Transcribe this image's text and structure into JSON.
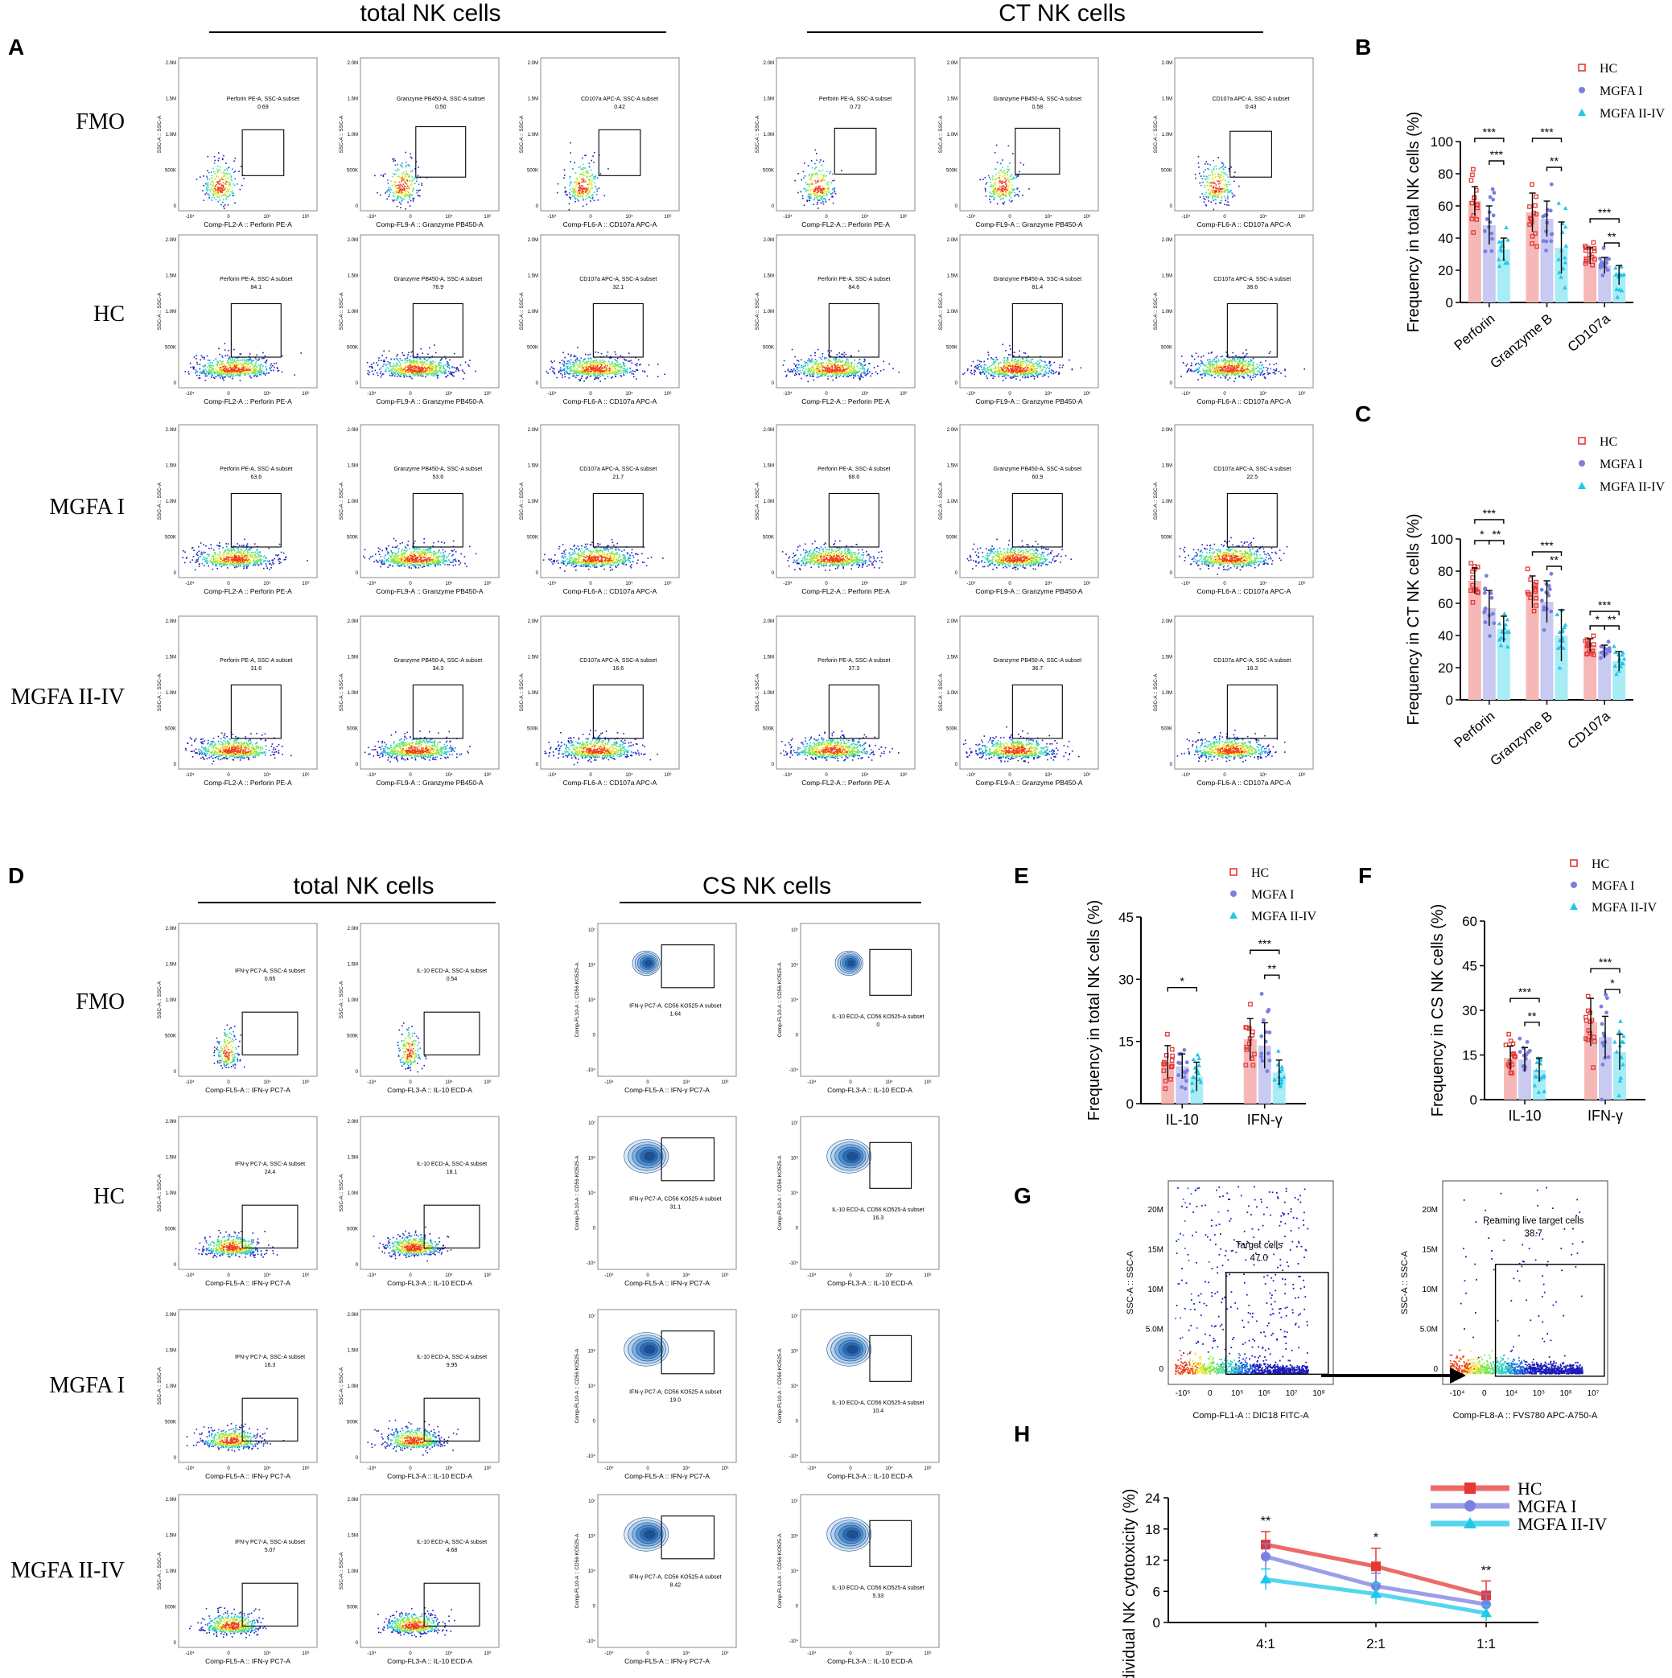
{
  "headers": {
    "top_left": "total NK cells",
    "top_right": "CT NK cells",
    "bottom_left": "total NK cells",
    "bottom_right": "CS NK cells"
  },
  "panel_letters": [
    "A",
    "B",
    "C",
    "D",
    "E",
    "F",
    "G",
    "H"
  ],
  "row_labels": [
    "FMO",
    "HC",
    "MGFA I",
    "MGFA II-IV"
  ],
  "flow_common": {
    "y_label": "SSC-A :: SSC-A",
    "y_ticks": [
      "2.0M",
      "1.5M",
      "1.0M",
      "500K",
      "0"
    ],
    "x_ticks": [
      "-10⁴",
      "0",
      "10⁴",
      "10⁶"
    ],
    "cs_y_label": "Comp-FL10-A :: CD56 KO525-A",
    "cs_y_ticks": [
      "10⁷",
      "10⁶",
      "10⁴",
      "0",
      "-10⁴"
    ]
  },
  "panel_A": {
    "columns": [
      {
        "marker": "Perforin PE-A, SSC-A subset",
        "xlabel": "Comp-FL2-A :: Perforin PE-A",
        "values": [
          "0.69",
          "84.1",
          "63.6",
          "31.6"
        ]
      },
      {
        "marker": "Granzyme PB450-A, SSC-A subset",
        "xlabel": "Comp-FL9-A :: Granzyme PB450-A",
        "values": [
          "0.50",
          "76.9",
          "53.6",
          "34.3"
        ]
      },
      {
        "marker": "CD107a APC-A, SSC-A subset",
        "xlabel": "Comp-FL6-A :: CD107a APC-A",
        "values": [
          "0.42",
          "32.1",
          "21.7",
          "16.6"
        ]
      },
      {
        "marker": "Perforin PE-A, SSC-A subset",
        "xlabel": "Comp-FL2-A :: Perforin PE-A",
        "values": [
          "0.72",
          "84.6",
          "68.6",
          "37.3"
        ]
      },
      {
        "marker": "Granzyme PB450-A, SSC-A subset",
        "xlabel": "Comp-FL9-A :: Granzyme PB450-A",
        "values": [
          "0.58",
          "81.4",
          "60.9",
          "36.7"
        ]
      },
      {
        "marker": "CD107a APC-A, SSC-A subset",
        "xlabel": "Comp-FL6-A :: CD107a APC-A",
        "values": [
          "0.43",
          "38.6",
          "22.5",
          "18.3"
        ]
      }
    ]
  },
  "panel_D": {
    "columns": [
      {
        "marker": "IFN-γ PC7-A, SSC-A subset",
        "xlabel": "Comp-FL5-A :: IFN-γ PC7-A",
        "values": [
          "0.65",
          "24.4",
          "16.3",
          "5.07"
        ]
      },
      {
        "marker": "IL-10 ECD-A, SSC-A subset",
        "xlabel": "Comp-FL3-A :: IL-10 ECD-A",
        "values": [
          "0.54",
          "18.1",
          "9.95",
          "4.68"
        ]
      },
      {
        "marker": "IFN-γ PC7-A, CD56 KO525-A subset",
        "xlabel": "Comp-FL5-A :: IFN-γ PC7-A",
        "values": [
          "1.64",
          "31.1",
          "19.0",
          "8.42"
        ]
      },
      {
        "marker": "IL-10 ECD-A, CD56 KO525-A subset",
        "xlabel": "Comp-FL3-A :: IL-10 ECD-A",
        "values": [
          "0",
          "16.3",
          "10.4",
          "5.33"
        ]
      }
    ]
  },
  "panel_G": {
    "left": {
      "gate": "Target cells",
      "value": "47.0",
      "xlabel": "Comp-FL1-A :: DIC18 FITC-A",
      "ylabel": "SSC-A :: SSC-A",
      "y_ticks": [
        "20M",
        "15M",
        "10M",
        "5.0M",
        "0"
      ],
      "x_ticks": [
        "-10⁵",
        "0",
        "10⁵",
        "10⁶",
        "10⁷",
        "10⁸"
      ]
    },
    "right": {
      "gate": "Reaming live target cells",
      "value": "38.7",
      "xlabel": "Comp-FL8-A :: FVS780 APC-A750-A",
      "ylabel": "SSC-A :: SSC-A",
      "y_ticks": [
        "20M",
        "15M",
        "10M",
        "5.0M",
        "0"
      ],
      "x_ticks": [
        "-10⁴",
        "0",
        "10⁴",
        "10⁵",
        "10⁶",
        "10⁷"
      ]
    }
  },
  "colors": {
    "HC": "#e53935",
    "MGFA_I": "#7b7fe0",
    "MGFA_II_IV": "#1ec8e8",
    "bar_HC": "#f6b8b6",
    "bar_MGFA_I": "#c9caf2",
    "bar_MGFA_II_IV": "#a8ecf6"
  },
  "legend": [
    "HC",
    "MGFA I",
    "MGFA II-IV"
  ],
  "chart_data": [
    {
      "id": "B",
      "type": "bar",
      "title": "",
      "ylabel": "Frequency in total NK cells (%)",
      "ylim": [
        0,
        100
      ],
      "yticks": [
        0,
        20,
        40,
        60,
        80,
        100
      ],
      "categories": [
        "Perforin",
        "Granzyme B",
        "CD107a"
      ],
      "series": [
        {
          "name": "HC",
          "values": [
            63,
            56,
            29
          ],
          "errors": [
            9,
            12,
            5
          ]
        },
        {
          "name": "MGFA I",
          "values": [
            48,
            52,
            23
          ],
          "errors": [
            12,
            11,
            5
          ]
        },
        {
          "name": "MGFA II-IV",
          "values": [
            33,
            34,
            17
          ],
          "errors": [
            7,
            16,
            6
          ]
        }
      ],
      "annotations": [
        {
          "cat": 0,
          "from": 0,
          "to": 2,
          "text": "***",
          "level": 102
        },
        {
          "cat": 0,
          "from": 1,
          "to": 2,
          "text": "***",
          "level": 88
        },
        {
          "cat": 1,
          "from": 0,
          "to": 2,
          "text": "***",
          "level": 102
        },
        {
          "cat": 1,
          "from": 1,
          "to": 2,
          "text": "**",
          "level": 84
        },
        {
          "cat": 2,
          "from": 0,
          "to": 2,
          "text": "***",
          "level": 52
        },
        {
          "cat": 2,
          "from": 1,
          "to": 2,
          "text": "**",
          "level": 37
        }
      ]
    },
    {
      "id": "C",
      "type": "bar",
      "title": "",
      "ylabel": "Frequency in CT NK cells (%)",
      "ylim": [
        0,
        100
      ],
      "yticks": [
        0,
        20,
        40,
        60,
        80,
        100
      ],
      "categories": [
        "Perforin",
        "Granzyme B",
        "CD107a"
      ],
      "series": [
        {
          "name": "HC",
          "values": [
            74,
            67,
            34
          ],
          "errors": [
            8,
            10,
            4
          ]
        },
        {
          "name": "MGFA I",
          "values": [
            57,
            61,
            30
          ],
          "errors": [
            11,
            13,
            4
          ]
        },
        {
          "name": "MGFA II-IV",
          "values": [
            44,
            40,
            24
          ],
          "errors": [
            8,
            16,
            6
          ]
        }
      ],
      "annotations": [
        {
          "cat": 0,
          "from": 0,
          "to": 2,
          "text": "***",
          "level": 112
        },
        {
          "cat": 0,
          "from": 0,
          "to": 1,
          "text": "*",
          "level": 99
        },
        {
          "cat": 0,
          "from": 1,
          "to": 2,
          "text": "**",
          "level": 99
        },
        {
          "cat": 1,
          "from": 0,
          "to": 2,
          "text": "***",
          "level": 92
        },
        {
          "cat": 1,
          "from": 1,
          "to": 2,
          "text": "**",
          "level": 83
        },
        {
          "cat": 2,
          "from": 0,
          "to": 2,
          "text": "***",
          "level": 55
        },
        {
          "cat": 2,
          "from": 0,
          "to": 1,
          "text": "*",
          "level": 46
        },
        {
          "cat": 2,
          "from": 1,
          "to": 2,
          "text": "**",
          "level": 46
        }
      ]
    },
    {
      "id": "E",
      "type": "bar",
      "title": "",
      "ylabel": "Frequency in total NK cells (%)",
      "ylim": [
        0,
        45
      ],
      "yticks": [
        0,
        15,
        30,
        45
      ],
      "categories": [
        "IL-10",
        "IFN-γ"
      ],
      "series": [
        {
          "name": "HC",
          "values": [
            10,
            15.5
          ],
          "errors": [
            4,
            5
          ]
        },
        {
          "name": "MGFA I",
          "values": [
            9,
            14
          ],
          "errors": [
            3,
            5.5
          ]
        },
        {
          "name": "MGFA II-IV",
          "values": [
            6.5,
            7.5
          ],
          "errors": [
            3.5,
            3
          ]
        }
      ],
      "annotations": [
        {
          "cat": 0,
          "from": 0,
          "to": 2,
          "text": "*",
          "level": 28
        },
        {
          "cat": 1,
          "from": 0,
          "to": 2,
          "text": "***",
          "level": 37
        },
        {
          "cat": 1,
          "from": 1,
          "to": 2,
          "text": "**",
          "level": 31
        }
      ]
    },
    {
      "id": "F",
      "type": "bar",
      "title": "",
      "ylabel": "Frequency in CS NK cells (%)",
      "ylim": [
        0,
        60
      ],
      "yticks": [
        0,
        15,
        30,
        45,
        60
      ],
      "categories": [
        "IL-10",
        "IFN-γ"
      ],
      "series": [
        {
          "name": "HC",
          "values": [
            14,
            26
          ],
          "errors": [
            4,
            8
          ]
        },
        {
          "name": "MGFA I",
          "values": [
            13.5,
            21
          ],
          "errors": [
            4,
            7
          ]
        },
        {
          "name": "MGFA II-IV",
          "values": [
            10,
            16
          ],
          "errors": [
            4,
            6
          ]
        }
      ],
      "annotations": [
        {
          "cat": 0,
          "from": 0,
          "to": 2,
          "text": "***",
          "level": 34
        },
        {
          "cat": 0,
          "from": 1,
          "to": 2,
          "text": "**",
          "level": 26
        },
        {
          "cat": 1,
          "from": 0,
          "to": 2,
          "text": "***",
          "level": 44
        },
        {
          "cat": 1,
          "from": 1,
          "to": 2,
          "text": "*",
          "level": 37
        }
      ]
    },
    {
      "id": "H",
      "type": "line",
      "title": "",
      "ylabel": "Individual NK cytotoxicity (%)",
      "ylim": [
        0,
        24
      ],
      "yticks": [
        0,
        6,
        12,
        18,
        24
      ],
      "x": [
        "4:1",
        "2:1",
        "1:1"
      ],
      "series": [
        {
          "name": "HC",
          "values": [
            15,
            10.8,
            5.2
          ],
          "errors": [
            2.5,
            3.5,
            2.8
          ]
        },
        {
          "name": "MGFA I",
          "values": [
            12.7,
            7,
            3.5
          ],
          "errors": [
            2.5,
            2.5,
            2
          ]
        },
        {
          "name": "MGFA II-IV",
          "values": [
            8.3,
            5.5,
            1.8
          ],
          "errors": [
            2,
            2,
            1.5
          ]
        }
      ],
      "annotations": [
        "**",
        "*",
        "**"
      ]
    }
  ]
}
